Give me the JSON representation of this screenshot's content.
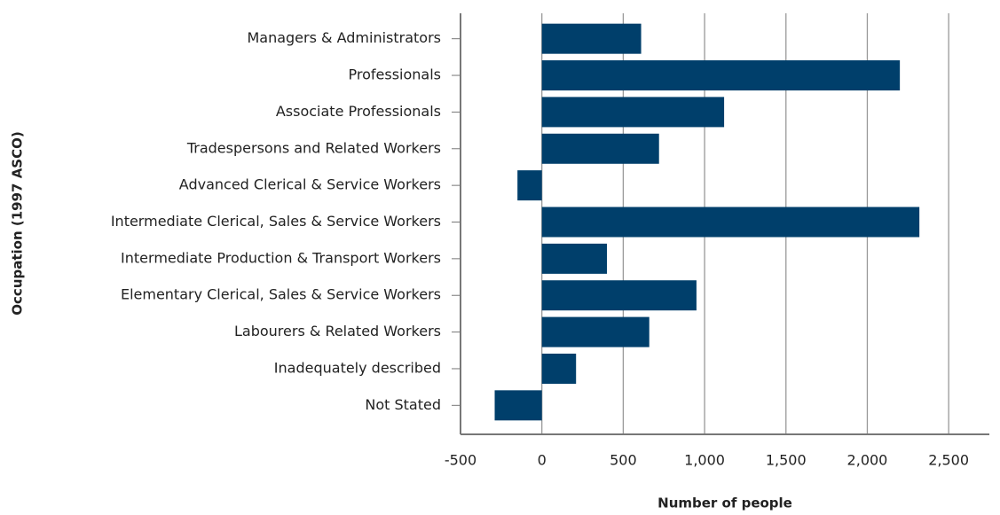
{
  "chart_data": {
    "type": "barh",
    "xlabel": "Number of people",
    "ylabel": "Occupation (1997 ASCO)",
    "categories": [
      "Managers & Administrators",
      "Professionals",
      "Associate Professionals",
      "Tradespersons and Related Workers",
      "Advanced Clerical & Service Workers",
      "Intermediate Clerical, Sales & Service Workers",
      "Intermediate Production & Transport Workers",
      "Elementary Clerical, Sales & Service Workers",
      "Labourers & Related Workers",
      "Inadequately described",
      "Not Stated"
    ],
    "values": [
      610,
      2200,
      1120,
      720,
      -150,
      2320,
      400,
      950,
      660,
      210,
      -290
    ],
    "color": "#003f6b",
    "xlim": [
      -500,
      2750
    ],
    "xticks": [
      -500,
      0,
      500,
      {
        "value": 1000,
        "label": "1,000"
      },
      {
        "value": 1500,
        "label": "1,500"
      },
      {
        "value": 2000,
        "label": "2,000"
      },
      {
        "value": 2500,
        "label": "2,500"
      }
    ],
    "grid": true
  }
}
